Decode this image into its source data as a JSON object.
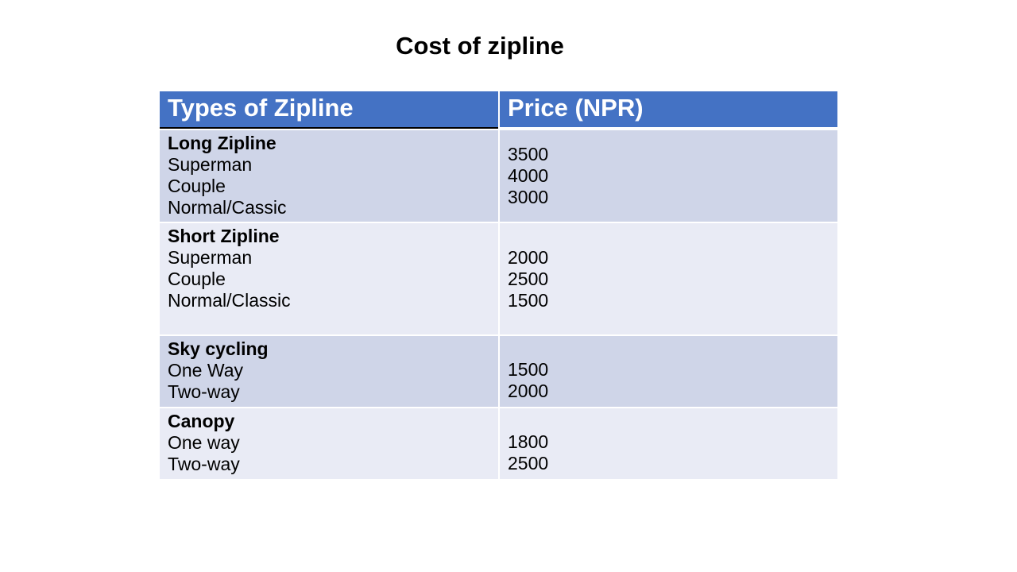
{
  "title": "Cost of zipline",
  "table": {
    "headers": [
      "Types of Zipline",
      "Price (NPR)"
    ],
    "rows": [
      {
        "category": "Long Zipline",
        "items": [
          "Superman",
          "Couple",
          "Normal/Cassic"
        ],
        "prices": [
          "3500",
          "4000",
          "3000"
        ]
      },
      {
        "category": "Short Zipline",
        "items": [
          "Superman",
          "Couple",
          "Normal/Classic"
        ],
        "prices": [
          "2000",
          "2500",
          "1500"
        ]
      },
      {
        "category": "Sky cycling",
        "items": [
          "One Way",
          "Two-way"
        ],
        "prices": [
          "1500",
          "2000"
        ]
      },
      {
        "category": "Canopy",
        "items": [
          "One way",
          "Two-way"
        ],
        "prices": [
          "1800",
          "2500"
        ]
      }
    ]
  },
  "colors": {
    "header_bg": "#4472c4",
    "row_odd_bg": "#cfd5e8",
    "row_even_bg": "#e9ebf5"
  }
}
